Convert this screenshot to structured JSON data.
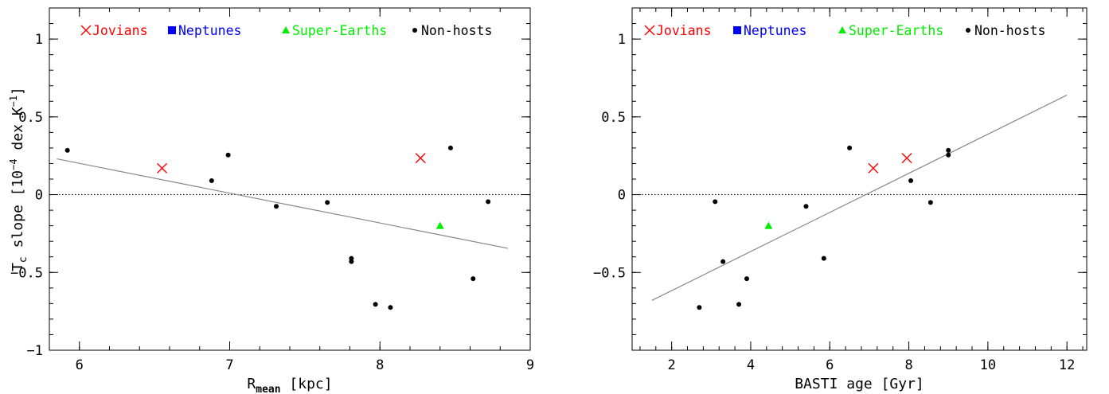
{
  "figure": {
    "legend": [
      {
        "label": "Jovians",
        "marker": "cross",
        "color": "#ff0000"
      },
      {
        "label": "Neptunes",
        "marker": "square",
        "color": "#0000ff"
      },
      {
        "label": "Super-Earths",
        "marker": "triangle",
        "color": "#00ee00"
      },
      {
        "label": "Non-hosts",
        "marker": "circle",
        "color": "#000000"
      }
    ],
    "ylabel_main": "T",
    "ylabel_sub": "c",
    "ylabel_rest": " slope [10",
    "ylabel_exp": "−4",
    "ylabel_unit": " dex K",
    "ylabel_unit_exp": "−1",
    "ylabel_close": "]"
  },
  "chart_data": [
    {
      "type": "scatter",
      "xlabel_main": "R",
      "xlabel_sub": "mean",
      "xlabel_rest": " [kpc]",
      "xlim": [
        5.8,
        9.0
      ],
      "ylim": [
        -1.0,
        1.2
      ],
      "xticks": [
        6,
        7,
        8,
        9
      ],
      "yticks": [
        -1,
        -0.5,
        0,
        0.5,
        1
      ],
      "xtick_labels": [
        "6",
        "7",
        "8",
        "9"
      ],
      "ytick_labels": [
        "−1",
        "−0.5",
        "0",
        "0.5",
        "1"
      ],
      "zero_line": true,
      "fit": {
        "x": [
          5.85,
          8.85
        ],
        "y": [
          0.23,
          -0.345
        ]
      },
      "series": [
        {
          "name": "Jovians",
          "marker": "cross",
          "color": "#ff0000",
          "x": [
            6.55,
            8.27
          ],
          "y": [
            0.17,
            0.235
          ]
        },
        {
          "name": "Neptunes",
          "marker": "square",
          "color": "#0000ff",
          "x": [],
          "y": []
        },
        {
          "name": "Super-Earths",
          "marker": "triangle",
          "color": "#00ee00",
          "x": [
            8.4
          ],
          "y": [
            -0.2
          ]
        },
        {
          "name": "Non-hosts",
          "marker": "circle",
          "color": "#000000",
          "x": [
            5.92,
            6.88,
            6.99,
            7.31,
            7.65,
            7.81,
            7.81,
            7.97,
            8.07,
            8.47,
            8.62,
            8.72
          ],
          "y": [
            0.285,
            0.09,
            0.255,
            -0.075,
            -0.05,
            -0.41,
            -0.43,
            -0.705,
            -0.725,
            0.3,
            -0.54,
            -0.045
          ]
        }
      ]
    },
    {
      "type": "scatter",
      "xlabel_main": "BASTI age [Gyr]",
      "xlabel_sub": "",
      "xlabel_rest": "",
      "xlim": [
        1.0,
        12.5
      ],
      "ylim": [
        -1.0,
        1.2
      ],
      "xticks": [
        2,
        4,
        6,
        8,
        10,
        12
      ],
      "yticks": [
        -0.5,
        0,
        0.5,
        1
      ],
      "xtick_labels": [
        "2",
        "4",
        "6",
        "8",
        "10",
        "12"
      ],
      "ytick_labels": [
        "−0.5",
        "0",
        "0.5",
        "1"
      ],
      "zero_line": true,
      "fit": {
        "x": [
          1.5,
          12.0
        ],
        "y": [
          -0.68,
          0.64
        ]
      },
      "series": [
        {
          "name": "Jovians",
          "marker": "cross",
          "color": "#ff0000",
          "x": [
            7.1,
            7.95
          ],
          "y": [
            0.17,
            0.235
          ]
        },
        {
          "name": "Neptunes",
          "marker": "square",
          "color": "#0000ff",
          "x": [],
          "y": []
        },
        {
          "name": "Super-Earths",
          "marker": "triangle",
          "color": "#00ee00",
          "x": [
            4.45
          ],
          "y": [
            -0.2
          ]
        },
        {
          "name": "Non-hosts",
          "marker": "circle",
          "color": "#000000",
          "x": [
            2.7,
            3.1,
            3.3,
            3.7,
            3.9,
            5.4,
            5.85,
            6.5,
            8.05,
            8.55,
            9.0,
            9.0
          ],
          "y": [
            -0.725,
            -0.045,
            -0.43,
            -0.705,
            -0.54,
            -0.075,
            -0.41,
            0.3,
            0.09,
            -0.05,
            0.255,
            0.285
          ]
        }
      ]
    }
  ]
}
